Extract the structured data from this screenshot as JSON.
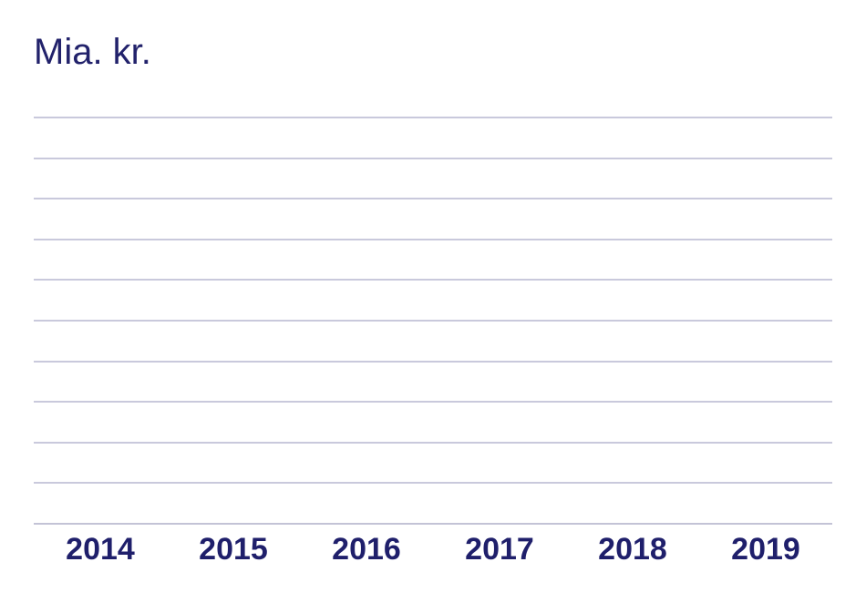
{
  "chart": {
    "unit_label": "Mia. kr."
  },
  "chart_data": {
    "type": "bar",
    "title": "Mia. kr.",
    "xlabel": "",
    "ylabel": "Mia. kr.",
    "categories": [
      "2014",
      "2015",
      "2016",
      "2017",
      "2018",
      "2019"
    ],
    "series": [],
    "values": [],
    "y_tick_labels": [],
    "gridline_count": 11,
    "grid": "horizontal",
    "legend_position": "none",
    "plot_empty": true
  },
  "colors": {
    "text_navy": "#1f1f6b",
    "title_navy": "#22226b",
    "gridline": "#c9c9dc",
    "axis_line": "#c3c3d6",
    "background": "#ffffff"
  }
}
